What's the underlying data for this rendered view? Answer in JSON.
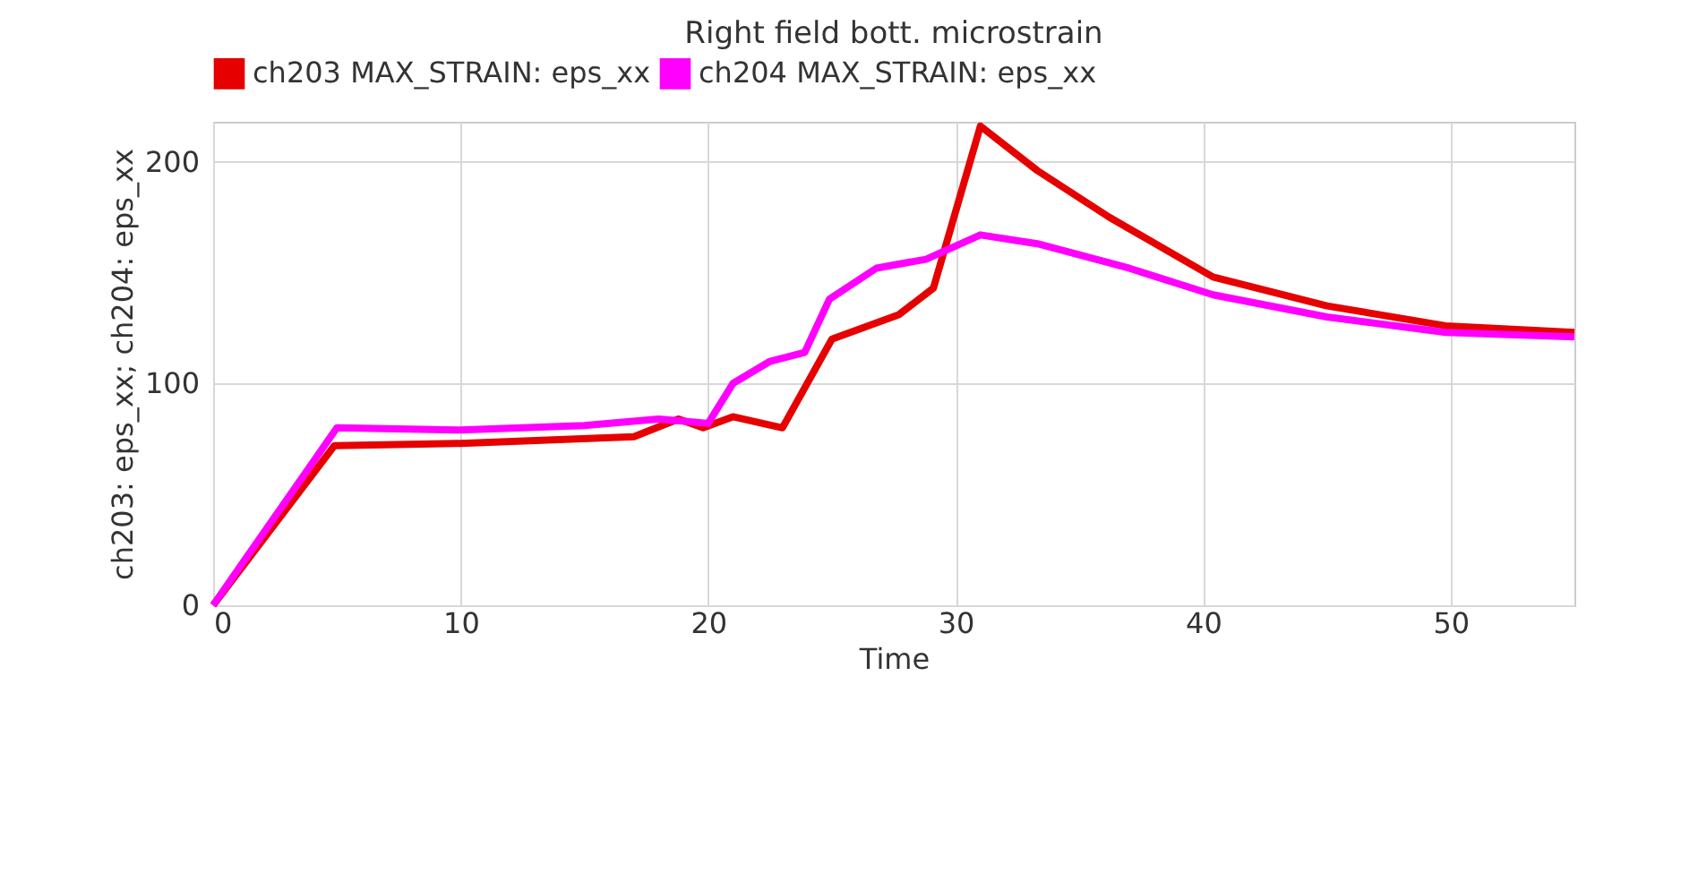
{
  "chart_data": {
    "type": "line",
    "title": "Right field bott. microstrain",
    "xlabel": "Time",
    "ylabel": "ch203: eps_xx; ch204: eps_xx",
    "xlim": [
      0,
      55
    ],
    "xticks": [
      0,
      10,
      20,
      30,
      40,
      50
    ],
    "ylim": [
      0,
      218
    ],
    "yticks": [
      0,
      100,
      200
    ],
    "grid": true,
    "legend": "top",
    "series": [
      {
        "name": "ch203 MAX_STRAIN: eps_xx",
        "color": "#e60000",
        "x": [
          0,
          4.9,
          10,
          17,
          18.8,
          19.8,
          21,
          23,
          25,
          27.7,
          29.1,
          31,
          33.3,
          36.2,
          40.4,
          45,
          49.8,
          55
        ],
        "values": [
          0,
          72,
          73,
          76,
          84,
          80,
          85,
          80,
          120,
          131,
          143,
          216,
          196,
          175,
          148,
          135,
          126,
          123
        ]
      },
      {
        "name": "ch204 MAX_STRAIN: eps_xx",
        "color": "#ff00ff",
        "x": [
          0,
          5,
          10,
          15,
          18,
          20,
          21,
          22.5,
          23.9,
          24.9,
          26.8,
          28.8,
          31,
          33.3,
          37,
          40.4,
          45,
          49.8,
          55
        ],
        "values": [
          0,
          80,
          79,
          81,
          84,
          82,
          100,
          110,
          114,
          138,
          152,
          156,
          167,
          163,
          152,
          140,
          130,
          123,
          121
        ]
      }
    ]
  }
}
